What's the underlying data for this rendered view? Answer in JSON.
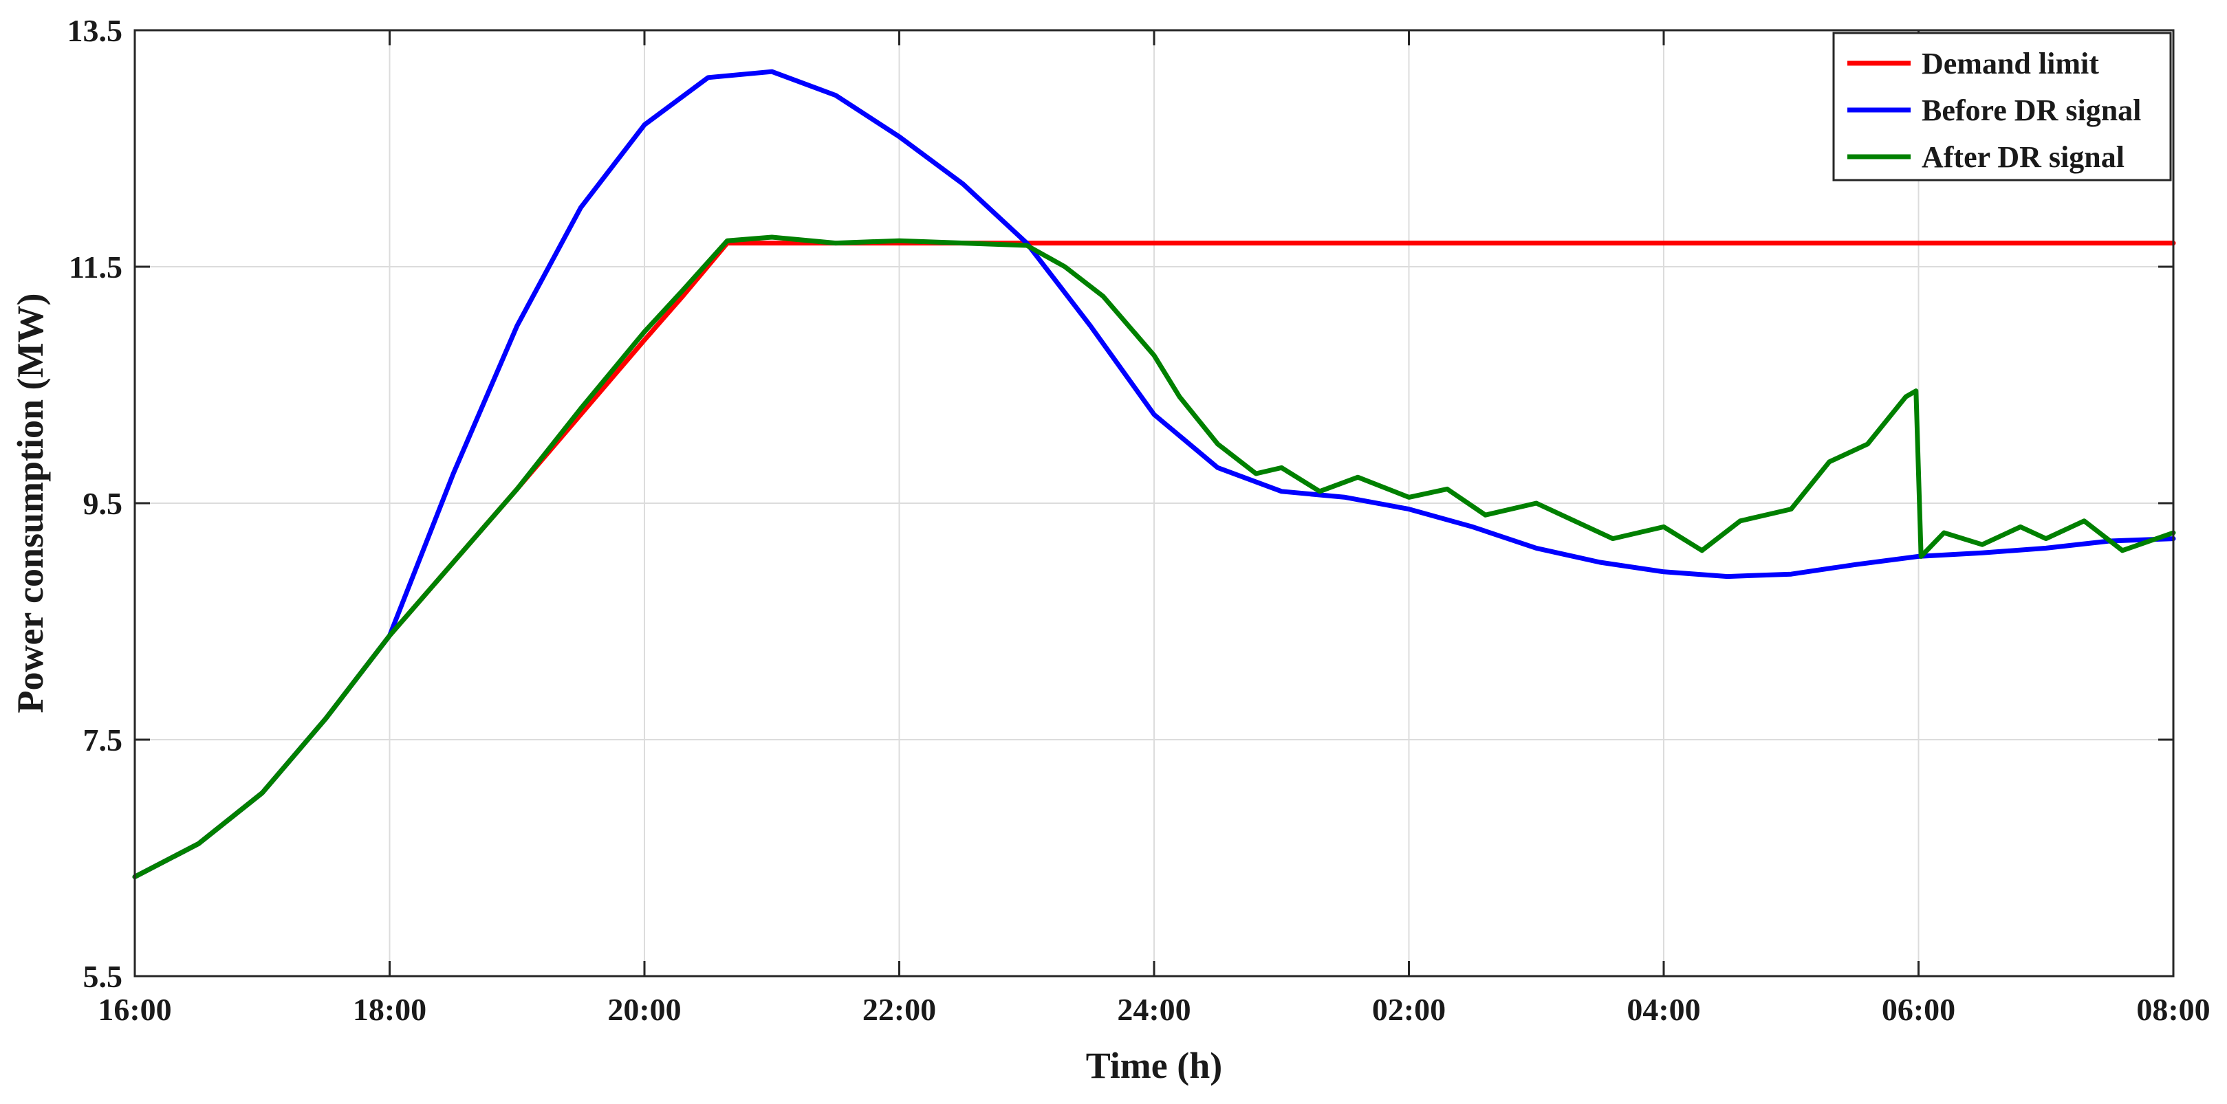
{
  "chart_data": {
    "type": "line",
    "xlabel": "Time (h)",
    "ylabel": "Power consumption (MW)",
    "x_unit": "hour of day (16:00 to 08:00 next day)",
    "xlim": [
      16,
      32
    ],
    "ylim": [
      5.5,
      13.5
    ],
    "x_ticks": [
      16,
      18,
      20,
      22,
      24,
      26,
      28,
      30,
      32
    ],
    "x_tick_labels": [
      "16:00",
      "18:00",
      "20:00",
      "22:00",
      "24:00",
      "02:00",
      "04:00",
      "06:00",
      "08:00"
    ],
    "y_ticks": [
      5.5,
      7.5,
      9.5,
      11.5,
      13.5
    ],
    "y_tick_labels": [
      "5.5",
      "7.5",
      "9.5",
      "11.5",
      "13.5"
    ],
    "grid": true,
    "legend_position": "top-right",
    "series": [
      {
        "name": "Demand limit",
        "color": "#ff0000",
        "x": [
          16,
          16.5,
          17,
          17.5,
          18,
          18.5,
          19,
          19.5,
          20,
          20.3,
          20.65,
          21,
          22,
          24,
          26,
          28,
          30,
          32
        ],
        "values": [
          6.34,
          6.62,
          7.05,
          7.68,
          8.38,
          9.0,
          9.62,
          10.25,
          10.88,
          11.25,
          11.7,
          11.7,
          11.7,
          11.7,
          11.7,
          11.7,
          11.7,
          11.7
        ]
      },
      {
        "name": "Before DR signal",
        "color": "#0000ff",
        "x": [
          16,
          16.5,
          17,
          17.5,
          18,
          18.5,
          19,
          19.5,
          20,
          20.5,
          21,
          21.5,
          22,
          22.5,
          23,
          23.5,
          24,
          24.5,
          25,
          25.5,
          26,
          26.5,
          27,
          27.5,
          28,
          28.5,
          29,
          29.5,
          30,
          30.5,
          31,
          31.5,
          32
        ],
        "values": [
          6.34,
          6.62,
          7.05,
          7.68,
          8.38,
          9.75,
          11.0,
          12.0,
          12.7,
          13.1,
          13.15,
          12.95,
          12.6,
          12.2,
          11.7,
          11.0,
          10.25,
          9.8,
          9.6,
          9.55,
          9.45,
          9.3,
          9.12,
          9.0,
          8.92,
          8.88,
          8.9,
          8.98,
          9.05,
          9.08,
          9.12,
          9.18,
          9.2
        ]
      },
      {
        "name": "After DR signal",
        "color": "#008000",
        "x": [
          16,
          16.5,
          17,
          17.5,
          18,
          18.5,
          19,
          19.5,
          20,
          20.3,
          20.65,
          21,
          21.5,
          22,
          22.5,
          23,
          23.3,
          23.6,
          24,
          24.2,
          24.5,
          24.8,
          25,
          25.3,
          25.6,
          26,
          26.3,
          26.6,
          27,
          27.3,
          27.6,
          28,
          28.3,
          28.6,
          29,
          29.3,
          29.6,
          29.9,
          29.98,
          30.02,
          30.2,
          30.5,
          30.8,
          31.0,
          31.3,
          31.6,
          32
        ],
        "values": [
          6.34,
          6.62,
          7.05,
          7.68,
          8.38,
          9.0,
          9.62,
          10.3,
          10.95,
          11.3,
          11.72,
          11.75,
          11.7,
          11.72,
          11.7,
          11.68,
          11.5,
          11.25,
          10.75,
          10.4,
          10.0,
          9.75,
          9.8,
          9.6,
          9.72,
          9.55,
          9.62,
          9.4,
          9.5,
          9.35,
          9.2,
          9.3,
          9.1,
          9.35,
          9.45,
          9.85,
          10.0,
          10.4,
          10.45,
          9.05,
          9.25,
          9.15,
          9.3,
          9.2,
          9.35,
          9.1,
          9.25
        ]
      }
    ]
  }
}
